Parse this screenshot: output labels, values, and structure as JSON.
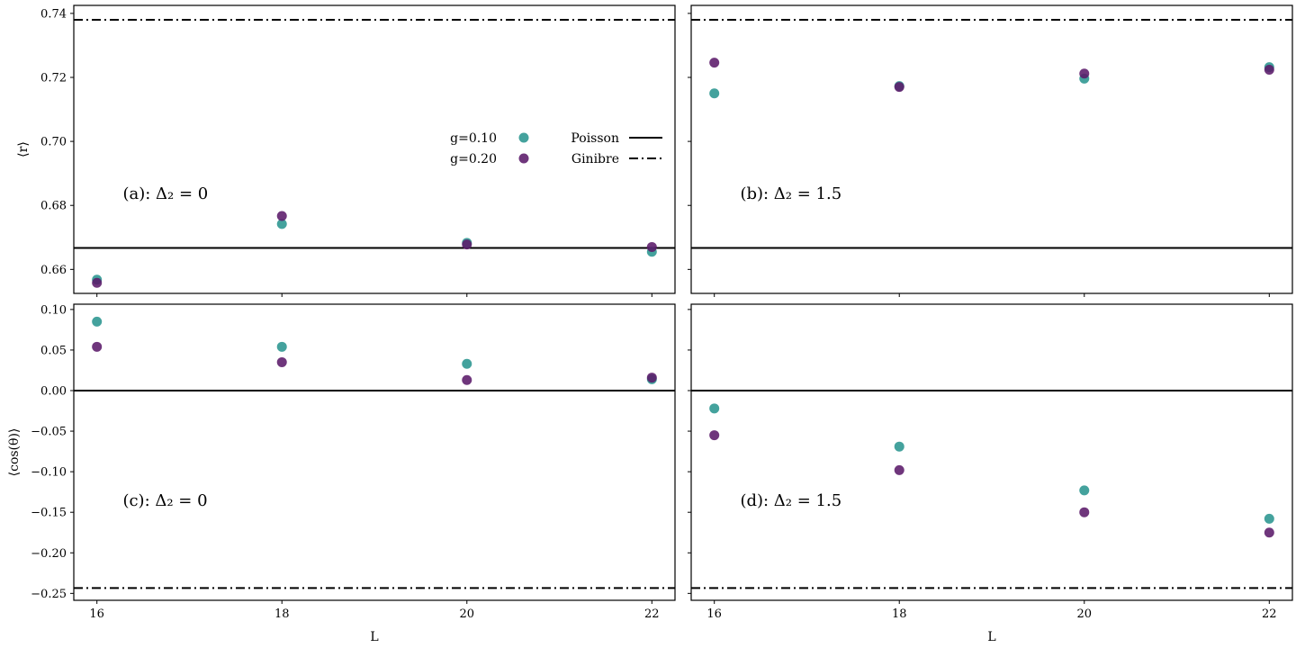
{
  "chart_data": [
    {
      "id": "a",
      "type": "scatter",
      "annotation": "(a): Δ₂ = 0",
      "x": [
        16,
        18,
        20,
        22
      ],
      "series": [
        {
          "name": "g=0.10",
          "color": "#2a9590",
          "values": [
            0.6568,
            0.6742,
            0.6683,
            0.6655
          ]
        },
        {
          "name": "g=0.20",
          "color": "#5b1a6a",
          "values": [
            0.6558,
            0.6767,
            0.6678,
            0.667
          ]
        }
      ],
      "hlines": [
        {
          "name": "Poisson",
          "y": 0.6667,
          "style": "solid"
        },
        {
          "name": "Ginibre",
          "y": 0.738,
          "style": "dashdot"
        }
      ],
      "xlim": [
        15.75,
        22.25
      ],
      "ylim": [
        0.6525,
        0.7425
      ],
      "xticks": [
        16,
        18,
        20,
        22
      ],
      "yticks": [
        0.66,
        0.68,
        0.7,
        0.72,
        0.74
      ],
      "ytick_labels": [
        "0.66",
        "0.68",
        "0.70",
        "0.72",
        "0.74"
      ],
      "ylabel": "⟨r⟩",
      "xlabel": "",
      "show_xtick_labels": false,
      "show_ytick_labels": true,
      "legend": true
    },
    {
      "id": "b",
      "type": "scatter",
      "annotation": "(b): Δ₂ = 1.5",
      "x": [
        16,
        18,
        20,
        22
      ],
      "series": [
        {
          "name": "g=0.10",
          "color": "#2a9590",
          "values": [
            0.715,
            0.7173,
            0.7196,
            0.7232
          ]
        },
        {
          "name": "g=0.20",
          "color": "#5b1a6a",
          "values": [
            0.7246,
            0.717,
            0.7212,
            0.7224
          ]
        }
      ],
      "hlines": [
        {
          "name": "Poisson",
          "y": 0.6667,
          "style": "solid"
        },
        {
          "name": "Ginibre",
          "y": 0.738,
          "style": "dashdot"
        }
      ],
      "xlim": [
        15.75,
        22.25
      ],
      "ylim": [
        0.6525,
        0.7425
      ],
      "xticks": [
        16,
        18,
        20,
        22
      ],
      "yticks": [
        0.66,
        0.68,
        0.7,
        0.72,
        0.74
      ],
      "ytick_labels": [],
      "ylabel": "",
      "xlabel": "",
      "show_xtick_labels": false,
      "show_ytick_labels": false,
      "legend": false
    },
    {
      "id": "c",
      "type": "scatter",
      "annotation": "(c): Δ₂ = 0",
      "x": [
        16,
        18,
        20,
        22
      ],
      "series": [
        {
          "name": "g=0.10",
          "color": "#2a9590",
          "values": [
            0.085,
            0.054,
            0.033,
            0.014
          ]
        },
        {
          "name": "g=0.20",
          "color": "#5b1a6a",
          "values": [
            0.054,
            0.035,
            0.013,
            0.016
          ]
        }
      ],
      "hlines": [
        {
          "name": "Poisson",
          "y": 0.0,
          "style": "solid"
        },
        {
          "name": "Ginibre",
          "y": -0.2434,
          "style": "dashdot"
        }
      ],
      "xlim": [
        15.75,
        22.25
      ],
      "ylim": [
        -0.2585,
        0.1065
      ],
      "xticks": [
        16,
        18,
        20,
        22
      ],
      "xtick_labels": [
        "16",
        "18",
        "20",
        "22"
      ],
      "yticks": [
        0.1,
        0.05,
        0.0,
        -0.05,
        -0.1,
        -0.15,
        -0.2,
        -0.25
      ],
      "ytick_labels": [
        "0.10",
        "0.05",
        "0.00",
        "−0.05",
        "−0.10",
        "−0.15",
        "−0.20",
        "−0.25"
      ],
      "ylabel": "⟨cos(θ)⟩",
      "xlabel": "L",
      "show_xtick_labels": true,
      "show_ytick_labels": true,
      "legend": false
    },
    {
      "id": "d",
      "type": "scatter",
      "annotation": "(d): Δ₂ = 1.5",
      "x": [
        16,
        18,
        20,
        22
      ],
      "series": [
        {
          "name": "g=0.10",
          "color": "#2a9590",
          "values": [
            -0.022,
            -0.069,
            -0.123,
            -0.158
          ]
        },
        {
          "name": "g=0.20",
          "color": "#5b1a6a",
          "values": [
            -0.055,
            -0.098,
            -0.15,
            -0.175
          ]
        }
      ],
      "hlines": [
        {
          "name": "Poisson",
          "y": 0.0,
          "style": "solid"
        },
        {
          "name": "Ginibre",
          "y": -0.2434,
          "style": "dashdot"
        }
      ],
      "xlim": [
        15.75,
        22.25
      ],
      "ylim": [
        -0.2585,
        0.1065
      ],
      "xticks": [
        16,
        18,
        20,
        22
      ],
      "xtick_labels": [
        "16",
        "18",
        "20",
        "22"
      ],
      "yticks": [
        0.1,
        0.05,
        0.0,
        -0.05,
        -0.1,
        -0.15,
        -0.2,
        -0.25
      ],
      "ytick_labels": [],
      "ylabel": "",
      "xlabel": "L",
      "show_xtick_labels": true,
      "show_ytick_labels": false,
      "legend": false
    }
  ]
}
